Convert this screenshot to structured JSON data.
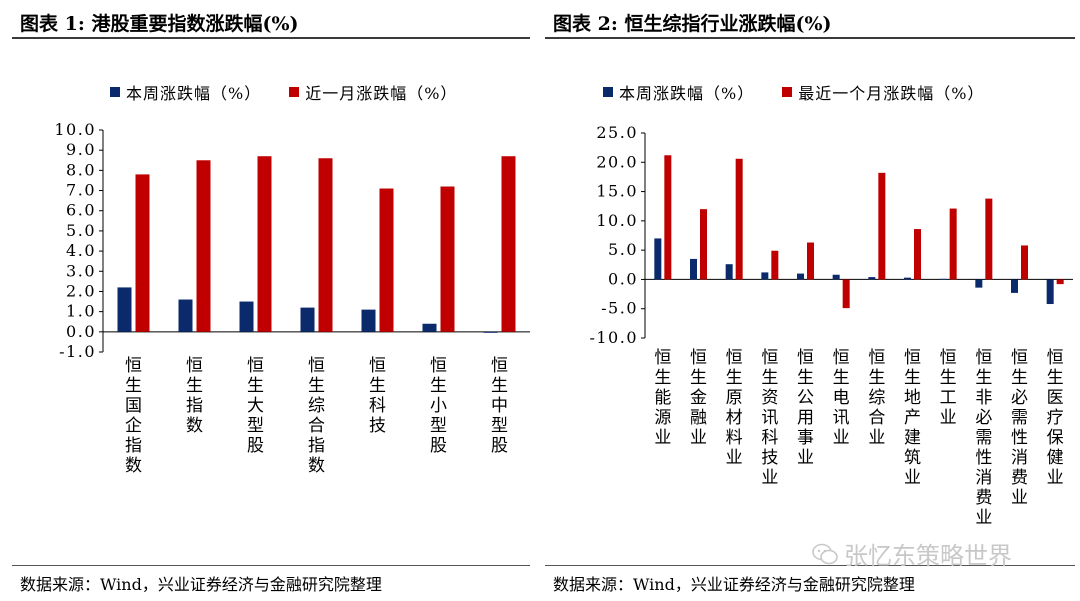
{
  "left": {
    "title": "图表 1:  港股重要指数涨跌幅(%)",
    "legend": [
      {
        "label": "本周涨跌幅（%）",
        "color": "#0b2a6b"
      },
      {
        "label": "近一月涨跌幅（%）",
        "color": "#c00000"
      }
    ],
    "source": "数据来源：Wind，兴业证券经济与金融研究院整理"
  },
  "right": {
    "title": "图表 2:  恒生综指行业涨跌幅(%)",
    "legend": [
      {
        "label": "本周涨跌幅（%）",
        "color": "#0b2a6b"
      },
      {
        "label": "最近一个月涨跌幅（%）",
        "color": "#c00000"
      }
    ],
    "source": "数据来源：Wind，兴业证券经济与金融研究院整理"
  },
  "watermark": "张忆东策略世界",
  "chart_data": [
    {
      "type": "bar",
      "title": "港股重要指数涨跌幅(%)",
      "categories": [
        "恒生国企指数",
        "恒生指数",
        "恒生大型股",
        "恒生综合指数",
        "恒生科技",
        "恒生小型股",
        "恒生中型股"
      ],
      "series": [
        {
          "name": "本周涨跌幅（%）",
          "color": "#0b2a6b",
          "values": [
            2.2,
            1.6,
            1.5,
            1.2,
            1.1,
            0.4,
            -0.05
          ]
        },
        {
          "name": "近一月涨跌幅（%）",
          "color": "#c00000",
          "values": [
            7.8,
            8.5,
            8.7,
            8.6,
            7.1,
            7.2,
            8.7
          ]
        }
      ],
      "yticks": [
        "10.0",
        "9.0",
        "8.0",
        "7.0",
        "6.0",
        "5.0",
        "4.0",
        "3.0",
        "2.0",
        "1.0",
        "0.0",
        "-1.0"
      ],
      "ylim": [
        -1,
        10
      ],
      "legend_position": "top",
      "grid": false
    },
    {
      "type": "bar",
      "title": "恒生综指行业涨跌幅(%)",
      "categories": [
        "恒生能源业",
        "恒生金融业",
        "恒生原材料业",
        "恒生资讯科技业",
        "恒生公用事业",
        "恒生电讯业",
        "恒生综合业",
        "恒生地产建筑业",
        "恒生工业",
        "恒生非必需性消费业",
        "恒生必需性消费业",
        "恒生医疗保健业"
      ],
      "series": [
        {
          "name": "本周涨跌幅（%）",
          "color": "#0b2a6b",
          "values": [
            7.0,
            3.5,
            2.6,
            1.2,
            1.0,
            0.8,
            0.4,
            0.3,
            0.1,
            -1.4,
            -2.3,
            -4.2
          ]
        },
        {
          "name": "最近一个月涨跌幅（%）",
          "color": "#c00000",
          "values": [
            21.2,
            12.0,
            20.6,
            4.9,
            6.3,
            -4.9,
            18.2,
            8.6,
            12.1,
            13.8,
            5.8,
            -0.8
          ]
        }
      ],
      "yticks": [
        "25.0",
        "20.0",
        "15.0",
        "10.0",
        "5.0",
        "0.0",
        "-5.0",
        "-10.0"
      ],
      "ylim": [
        -10,
        25
      ],
      "legend_position": "top",
      "grid": false
    }
  ]
}
